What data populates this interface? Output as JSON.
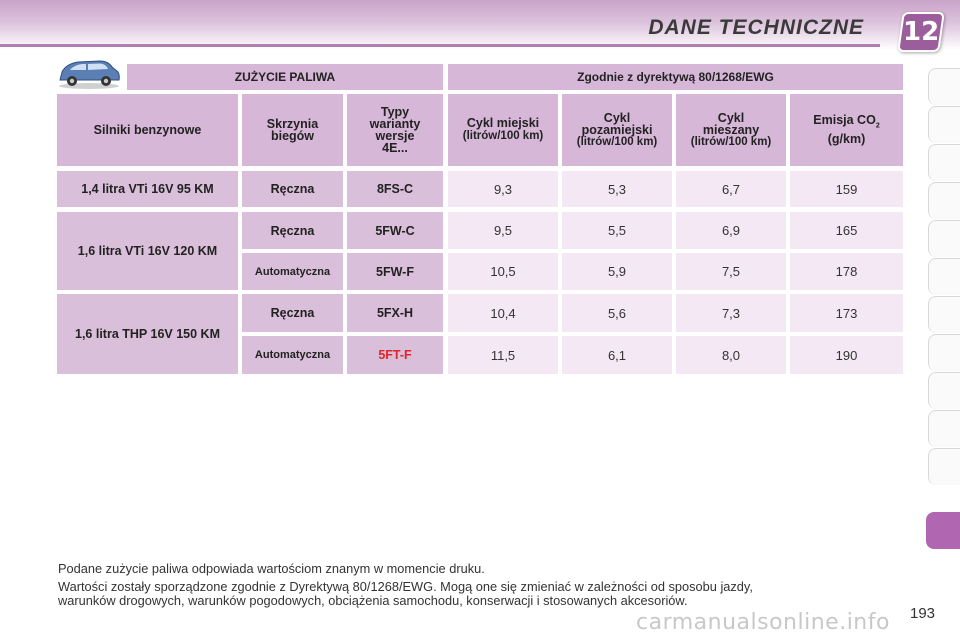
{
  "header": {
    "title": "DANE TECHNICZNE",
    "chapter": "12"
  },
  "table": {
    "title_left": "ZUŻYCIE PALIWA",
    "title_right": "Zgodnie z dyrektywą 80/1268/EWG",
    "columns": {
      "engines": "Silniki benzynowe",
      "gearbox": "Skrzynia biegów",
      "types": "Typy warianty wersje 4E...",
      "urban": "Cykl miejski",
      "urban_unit": "(litrów/100 km)",
      "extra": "Cykl pozamiejski",
      "extra_unit": "(litrów/100 km)",
      "mixed": "Cykl mieszany",
      "mixed_unit": "(litrów/100 km)",
      "co2": "Emisja CO",
      "co2_sub": "2",
      "co2_unit": "(g/km)"
    },
    "engines": [
      "1,4 litra VTi 16V 95 KM",
      "1,6 litra VTi 16V 120 KM",
      "1,6 litra THP 16V 150 KM"
    ],
    "rows": [
      {
        "gearbox": "Ręczna",
        "type": "8FS-C",
        "urban": "9,3",
        "extra": "5,3",
        "mixed": "6,7",
        "co2": "159"
      },
      {
        "gearbox": "Ręczna",
        "type": "5FW-C",
        "urban": "9,5",
        "extra": "5,5",
        "mixed": "6,9",
        "co2": "165"
      },
      {
        "gearbox": "Automatyczna",
        "type": "5FW-F",
        "urban": "10,5",
        "extra": "5,9",
        "mixed": "7,5",
        "co2": "178"
      },
      {
        "gearbox": "Ręczna",
        "type": "5FX-H",
        "urban": "10,4",
        "extra": "5,6",
        "mixed": "7,3",
        "co2": "173"
      },
      {
        "gearbox": "Automatyczna",
        "type": "5FT-F",
        "urban": "11,5",
        "extra": "6,1",
        "mixed": "8,0",
        "co2": "190"
      }
    ],
    "highlight_color": "#e0242c"
  },
  "footer": {
    "line1": "Podane zużycie paliwa odpowiada wartościom znanym w momencie druku.",
    "line2a": "Wartości zostały sporządzone zgodnie z Dyrektywą 80/1268/EWG. Mogą one się zmieniać w zależności od sposobu jazdy,",
    "line2b": "warunków drogowych, warunków pogodowych, obciążenia samochodu, konserwacji i stosowanych akcesoriów."
  },
  "page_number": "193",
  "watermark": "carmanualsonline.info"
}
